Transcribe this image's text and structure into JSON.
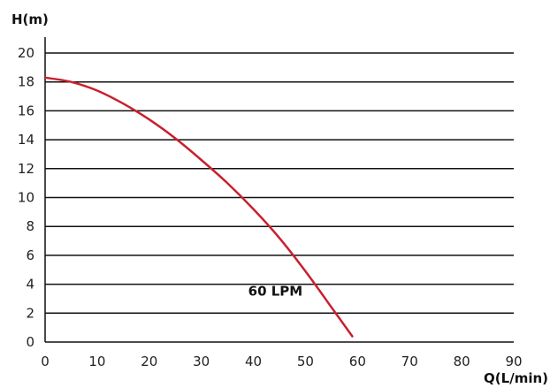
{
  "chart_data": {
    "type": "line",
    "xlabel": "Q(L/min)",
    "ylabel": "H(m)",
    "xlim": [
      0,
      90
    ],
    "ylim": [
      0,
      20
    ],
    "x_ticks": [
      0,
      10,
      20,
      30,
      40,
      50,
      60,
      70,
      80,
      90
    ],
    "y_ticks": [
      0,
      2,
      4,
      6,
      8,
      10,
      12,
      14,
      16,
      18,
      20
    ],
    "grid": "horizontal",
    "series": [
      {
        "name": "60 LPM",
        "color": "#c8202f",
        "x": [
          0,
          5,
          10,
          15,
          20,
          25,
          30,
          35,
          40,
          45,
          50,
          55,
          59
        ],
        "y": [
          18.3,
          18.0,
          17.4,
          16.5,
          15.4,
          14.1,
          12.6,
          11.0,
          9.2,
          7.2,
          4.9,
          2.4,
          0.4
        ]
      }
    ],
    "annotations": [
      {
        "text": "60 LPM",
        "x": 39,
        "y": 3.2
      }
    ]
  }
}
